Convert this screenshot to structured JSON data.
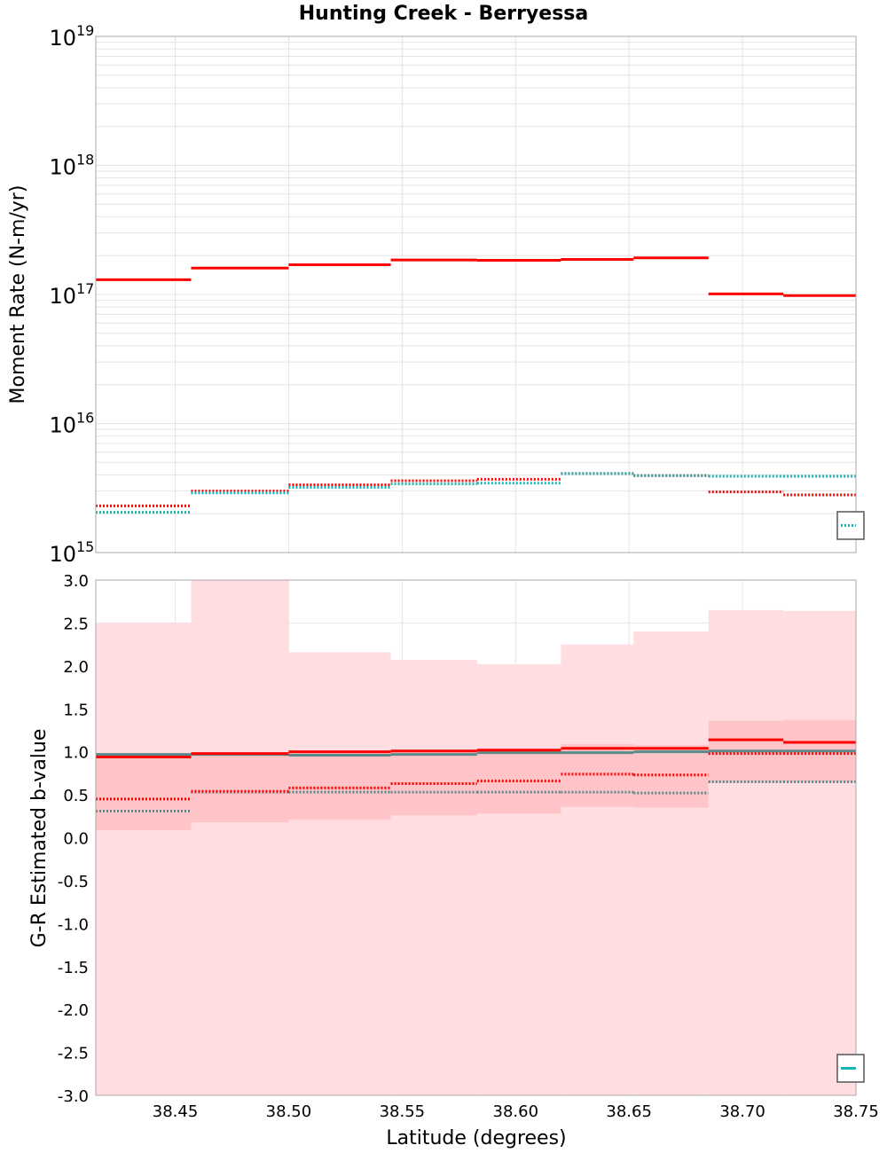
{
  "title": "Hunting Creek - Berryessa",
  "colors": {
    "primary": "#ff0000",
    "secondary": "#1ab3b3",
    "mixed": "#5a8a8a",
    "band_outer": "#ffdde0",
    "band_inner": "#ffc4c8",
    "grid": "#e4e4e4",
    "frame": "#a8a8a8"
  },
  "chart_data": [
    {
      "type": "line",
      "title": "Hunting Creek - Berryessa",
      "xlabel": "",
      "ylabel": "Moment Rate (N-m/yr)",
      "yscale": "log",
      "xlim": [
        38.415,
        38.75
      ],
      "ylim": [
        1000000000000000.0,
        1e+19
      ],
      "grid": true,
      "y_ticks": [
        {
          "value": 1000000000000000.0,
          "base": "10",
          "exp": "15"
        },
        {
          "value": 1e+16,
          "base": "10",
          "exp": "16"
        },
        {
          "value": 1e+17,
          "base": "10",
          "exp": "17"
        },
        {
          "value": 1e+18,
          "base": "10",
          "exp": "18"
        },
        {
          "value": 1e+19,
          "base": "10",
          "exp": "19"
        }
      ],
      "bin_edges": [
        38.415,
        38.457,
        38.5,
        38.545,
        38.583,
        38.62,
        38.652,
        38.685,
        38.718,
        38.75
      ],
      "series": [
        {
          "name": "moment-rate-solid-red",
          "color": "#ff0000",
          "style": "solid",
          "width": 3,
          "values": [
            1.3e+17,
            1.6e+17,
            1.7e+17,
            1.85e+17,
            1.84e+17,
            1.87e+17,
            1.92e+17,
            1.01e+17,
            9.8e+16
          ]
        },
        {
          "name": "moment-rate-dotted-red",
          "color": "#ff0000",
          "style": "dotted",
          "width": 3,
          "values": [
            2300000000000000.0,
            3000000000000000.0,
            3350000000000000.0,
            3600000000000000.0,
            3700000000000000.0,
            4100000000000000.0,
            3950000000000000.0,
            2950000000000000.0,
            2800000000000000.0
          ]
        },
        {
          "name": "moment-rate-dotted-cyan",
          "color": "#1ab3b3",
          "style": "dotted",
          "width": 3,
          "values": [
            2050000000000000.0,
            2900000000000000.0,
            3200000000000000.0,
            3400000000000000.0,
            3450000000000000.0,
            4100000000000000.0,
            3950000000000000.0,
            3900000000000000.0,
            3900000000000000.0
          ]
        }
      ]
    },
    {
      "type": "line",
      "title": "",
      "xlabel": "Latitude (degrees)",
      "ylabel": "G-R Estimated b-value",
      "xlim": [
        38.415,
        38.75
      ],
      "ylim": [
        -3.0,
        3.0
      ],
      "grid": true,
      "x_tick_values": [
        38.45,
        38.5,
        38.55,
        38.6,
        38.65,
        38.7,
        38.75
      ],
      "x_tick_labels": [
        "38.45",
        "38.50",
        "38.55",
        "38.60",
        "38.65",
        "38.70",
        "38.75"
      ],
      "y_tick_values": [
        3.0,
        2.5,
        2.0,
        1.5,
        1.0,
        0.5,
        0.0,
        -0.5,
        -1.0,
        -1.5,
        -2.0,
        -2.5,
        -3.0
      ],
      "y_tick_labels": [
        "3.0",
        "2.5",
        "2.0",
        "1.5",
        "1.0",
        "0.5",
        "0.0",
        "-0.5",
        "-1.0",
        "-1.5",
        "-2.0",
        "-2.5",
        "-3.0"
      ],
      "bin_edges": [
        38.415,
        38.457,
        38.5,
        38.545,
        38.583,
        38.62,
        38.652,
        38.685,
        38.718,
        38.75
      ],
      "bands": [
        {
          "name": "b-value-outer-band",
          "color": "#ffdde0",
          "low": [
            -3.0,
            -3.0,
            -3.0,
            -3.0,
            -3.0,
            -3.0,
            -3.0,
            -3.0,
            -3.0
          ],
          "high": [
            2.5,
            3.0,
            2.16,
            2.07,
            2.02,
            2.25,
            2.4,
            2.65,
            2.64
          ]
        },
        {
          "name": "b-value-inner-band",
          "color": "#ffc4c8",
          "low": [
            0.09,
            0.18,
            0.21,
            0.26,
            0.28,
            0.36,
            0.35,
            0.65,
            0.65
          ],
          "high": [
            0.97,
            0.99,
            1.0,
            1.01,
            1.03,
            1.09,
            1.08,
            1.36,
            1.37
          ]
        }
      ],
      "series": [
        {
          "name": "b-value-solid-mixed",
          "color": "#5a8a8a",
          "style": "solid",
          "width": 3,
          "values": [
            0.97,
            0.97,
            0.96,
            0.97,
            0.99,
            0.99,
            1.0,
            1.01,
            1.01
          ]
        },
        {
          "name": "b-value-solid-red",
          "color": "#ff0000",
          "style": "solid",
          "width": 3,
          "values": [
            0.94,
            0.98,
            1.0,
            1.01,
            1.02,
            1.04,
            1.04,
            1.14,
            1.11
          ]
        },
        {
          "name": "b-value-dotted-mixed",
          "color": "#5a8a8a",
          "style": "dotted",
          "width": 3,
          "values": [
            0.31,
            0.53,
            0.53,
            0.53,
            0.53,
            0.53,
            0.52,
            0.65,
            0.65
          ]
        },
        {
          "name": "b-value-dotted-red",
          "color": "#ff0000",
          "style": "dotted",
          "width": 3,
          "values": [
            0.45,
            0.54,
            0.58,
            0.63,
            0.66,
            0.74,
            0.73,
            0.98,
            0.98
          ]
        }
      ]
    }
  ]
}
